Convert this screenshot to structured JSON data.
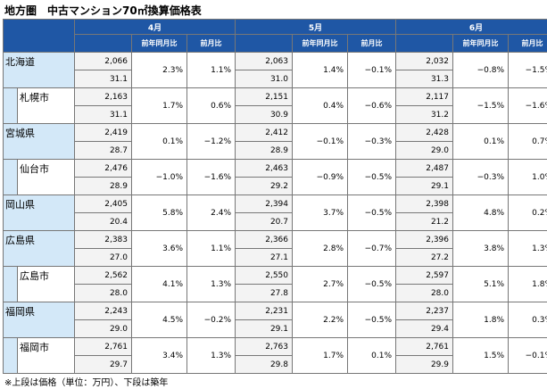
{
  "title": "地方圏　中古マンション70㎡換算価格表",
  "months": [
    "4月",
    "5月",
    "6月"
  ],
  "subheaders": {
    "yoy": "前年同月比",
    "mom": "前月比"
  },
  "rows": [
    {
      "name": "北海道",
      "child": false,
      "m": [
        {
          "price": "2,066",
          "age": "31.1",
          "yoy": "2.3%",
          "mom": "1.1%"
        },
        {
          "price": "2,063",
          "age": "31.0",
          "yoy": "1.4%",
          "mom": "−0.1%"
        },
        {
          "price": "2,032",
          "age": "31.3",
          "yoy": "−0.8%",
          "mom": "−1.5%"
        }
      ]
    },
    {
      "name": "札幌市",
      "child": true,
      "m": [
        {
          "price": "2,163",
          "age": "31.1",
          "yoy": "1.7%",
          "mom": "0.6%"
        },
        {
          "price": "2,151",
          "age": "30.9",
          "yoy": "0.4%",
          "mom": "−0.6%"
        },
        {
          "price": "2,117",
          "age": "31.2",
          "yoy": "−1.5%",
          "mom": "−1.6%"
        }
      ]
    },
    {
      "name": "宮城県",
      "child": false,
      "m": [
        {
          "price": "2,419",
          "age": "28.7",
          "yoy": "0.1%",
          "mom": "−1.2%"
        },
        {
          "price": "2,412",
          "age": "28.9",
          "yoy": "−0.1%",
          "mom": "−0.3%"
        },
        {
          "price": "2,428",
          "age": "29.0",
          "yoy": "0.1%",
          "mom": "0.7%"
        }
      ]
    },
    {
      "name": "仙台市",
      "child": true,
      "m": [
        {
          "price": "2,476",
          "age": "28.9",
          "yoy": "−1.0%",
          "mom": "−1.6%"
        },
        {
          "price": "2,463",
          "age": "29.2",
          "yoy": "−0.9%",
          "mom": "−0.5%"
        },
        {
          "price": "2,487",
          "age": "29.1",
          "yoy": "−0.3%",
          "mom": "1.0%"
        }
      ]
    },
    {
      "name": "岡山県",
      "child": false,
      "m": [
        {
          "price": "2,405",
          "age": "20.4",
          "yoy": "5.8%",
          "mom": "2.4%"
        },
        {
          "price": "2,394",
          "age": "20.7",
          "yoy": "3.7%",
          "mom": "−0.5%"
        },
        {
          "price": "2,398",
          "age": "21.2",
          "yoy": "4.8%",
          "mom": "0.2%"
        }
      ]
    },
    {
      "name": "広島県",
      "child": false,
      "m": [
        {
          "price": "2,383",
          "age": "27.0",
          "yoy": "3.6%",
          "mom": "1.1%"
        },
        {
          "price": "2,366",
          "age": "27.1",
          "yoy": "2.8%",
          "mom": "−0.7%"
        },
        {
          "price": "2,396",
          "age": "27.2",
          "yoy": "3.8%",
          "mom": "1.3%"
        }
      ]
    },
    {
      "name": "広島市",
      "child": true,
      "m": [
        {
          "price": "2,562",
          "age": "28.0",
          "yoy": "4.1%",
          "mom": "1.3%"
        },
        {
          "price": "2,550",
          "age": "27.8",
          "yoy": "2.7%",
          "mom": "−0.5%"
        },
        {
          "price": "2,597",
          "age": "28.0",
          "yoy": "5.1%",
          "mom": "1.8%"
        }
      ]
    },
    {
      "name": "福岡県",
      "child": false,
      "m": [
        {
          "price": "2,243",
          "age": "29.0",
          "yoy": "4.5%",
          "mom": "−0.2%"
        },
        {
          "price": "2,231",
          "age": "29.1",
          "yoy": "2.2%",
          "mom": "−0.5%"
        },
        {
          "price": "2,237",
          "age": "29.4",
          "yoy": "1.8%",
          "mom": "0.3%"
        }
      ]
    },
    {
      "name": "福岡市",
      "child": true,
      "m": [
        {
          "price": "2,761",
          "age": "29.7",
          "yoy": "3.4%",
          "mom": "1.3%"
        },
        {
          "price": "2,763",
          "age": "29.8",
          "yoy": "1.7%",
          "mom": "0.1%"
        },
        {
          "price": "2,761",
          "age": "29.9",
          "yoy": "1.5%",
          "mom": "−0.1%"
        }
      ]
    }
  ],
  "footnote": "※上段は価格（単位：万円）、下段は築年",
  "colors": {
    "header_bg": "#1f57a5",
    "region_bg": "#d3e8f8",
    "value_bg": "#f3f3f3"
  }
}
